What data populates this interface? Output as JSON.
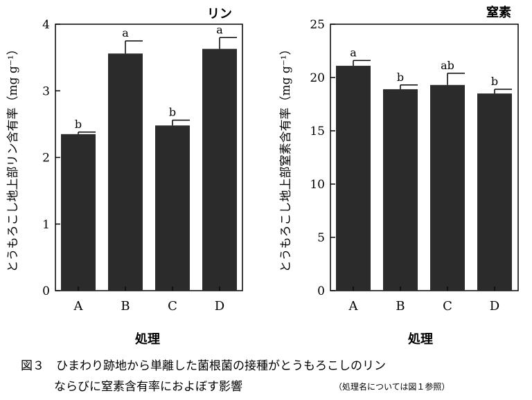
{
  "chart_data": [
    {
      "type": "bar",
      "title": "リン",
      "ylabel": "とうもろこし地上部リン含有率（mg g⁻¹）",
      "xlabel": "処理",
      "categories": [
        "A",
        "B",
        "C",
        "D"
      ],
      "values": [
        2.35,
        3.56,
        2.48,
        3.63
      ],
      "errors": [
        0.03,
        0.19,
        0.08,
        0.17
      ],
      "significance_letters": [
        "b",
        "a",
        "b",
        "a"
      ],
      "ylim": [
        0,
        4
      ],
      "yticks": [
        "0",
        "1",
        "2",
        "3",
        "4"
      ],
      "grid": false,
      "bar_color": "#2b2b2b"
    },
    {
      "type": "bar",
      "title": "窒素",
      "ylabel": "とうもろこし地上部窒素含有率（mg g⁻¹）",
      "xlabel": "処理",
      "categories": [
        "A",
        "B",
        "C",
        "D"
      ],
      "values": [
        21.1,
        18.9,
        19.3,
        18.5
      ],
      "errors": [
        0.5,
        0.4,
        1.1,
        0.4
      ],
      "significance_letters": [
        "a",
        "b",
        "ab",
        "b"
      ],
      "ylim": [
        0,
        25
      ],
      "yticks": [
        "0",
        "5",
        "10",
        "15",
        "20",
        "25"
      ],
      "grid": false,
      "bar_color": "#2b2b2b"
    }
  ],
  "caption": {
    "line1": "図３　ひまわり跡地から単離した菌根菌の接種がとうもろこしのリン",
    "line2": "ならびに窒素含有率におよぼす影響",
    "note": "（処理名については図１参照）"
  }
}
